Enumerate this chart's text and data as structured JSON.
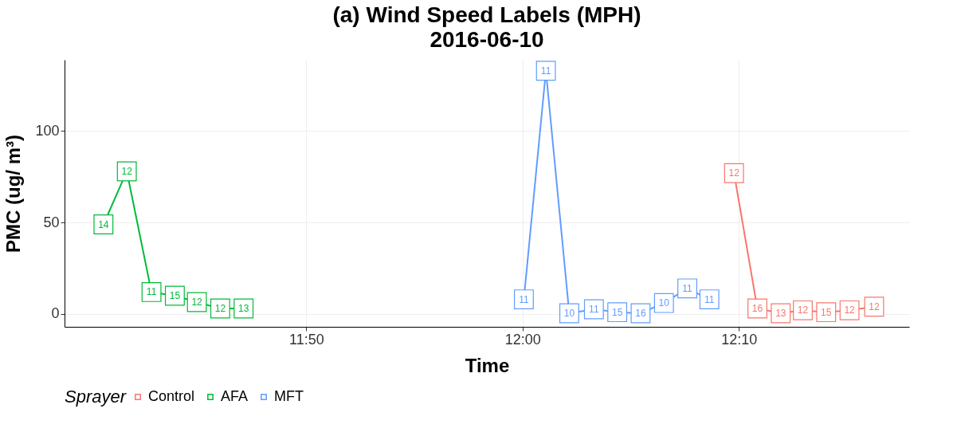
{
  "chart_data": {
    "type": "line",
    "title": "(a) Wind Speed Labels (MPH)",
    "subtitle": "2016-06-10",
    "xlabel": "Time",
    "ylabel": "PMC (ug/ m³)",
    "legend_title": "Sprayer",
    "xlim": [
      11.647,
      12.298
    ],
    "xticks": [
      {
        "value": 11.8333,
        "label": "11:50"
      },
      {
        "value": 12.0,
        "label": "12:00"
      },
      {
        "value": 12.1667,
        "label": "12:10"
      }
    ],
    "ylim": [
      -7,
      139
    ],
    "yticks": [
      0,
      50,
      100
    ],
    "grid": true,
    "legend": "bottom",
    "marker": "square",
    "line_style": "solid",
    "annotations": [
      {
        "text": "12",
        "x": 12.163,
        "y": 77
      },
      {
        "text": "16",
        "x": 12.181,
        "y": 3
      },
      {
        "text": "13",
        "x": 12.199,
        "y": 0.4
      },
      {
        "text": "12",
        "x": 12.216,
        "y": 2
      },
      {
        "text": "15",
        "x": 12.234,
        "y": 1
      },
      {
        "text": "12",
        "x": 12.252,
        "y": 2
      },
      {
        "text": "12",
        "x": 12.271,
        "y": 4
      },
      {
        "text": "14",
        "x": 11.677,
        "y": 49
      },
      {
        "text": "12",
        "x": 11.695,
        "y": 78
      },
      {
        "text": "11",
        "x": 11.714,
        "y": 12
      },
      {
        "text": "15",
        "x": 11.732,
        "y": 10
      },
      {
        "text": "12",
        "x": 11.749,
        "y": 6.5
      },
      {
        "text": "12",
        "x": 11.767,
        "y": 3
      },
      {
        "text": "13",
        "x": 11.785,
        "y": 3
      },
      {
        "text": "11",
        "x": 12.001,
        "y": 8
      },
      {
        "text": "11",
        "x": 12.018,
        "y": 133
      },
      {
        "text": "10",
        "x": 12.036,
        "y": 0.4
      },
      {
        "text": "11",
        "x": 12.055,
        "y": 2.6
      },
      {
        "text": "15",
        "x": 12.073,
        "y": 1
      },
      {
        "text": "16",
        "x": 12.091,
        "y": 0.4
      },
      {
        "text": "10",
        "x": 12.109,
        "y": 6
      },
      {
        "text": "11",
        "x": 12.127,
        "y": 14
      },
      {
        "text": "11",
        "x": 12.144,
        "y": 8
      }
    ],
    "series": [
      {
        "name": "Control",
        "color": "#f8766d",
        "x": [
          12.163,
          12.181,
          12.199,
          12.216,
          12.234,
          12.252,
          12.271
        ],
        "values": [
          77,
          3,
          0.4,
          2,
          1,
          2,
          4
        ]
      },
      {
        "name": "AFA",
        "color": "#00ba38",
        "x": [
          11.677,
          11.695,
          11.714,
          11.732,
          11.749,
          11.767,
          11.785
        ],
        "values": [
          49,
          78,
          12,
          10,
          6.5,
          3,
          3
        ]
      },
      {
        "name": "MFT",
        "color": "#619cff",
        "x": [
          12.001,
          12.018,
          12.036,
          12.055,
          12.073,
          12.091,
          12.109,
          12.127,
          12.144
        ],
        "values": [
          8,
          133,
          0.4,
          2.6,
          1,
          0.4,
          6,
          14,
          8
        ]
      }
    ]
  }
}
